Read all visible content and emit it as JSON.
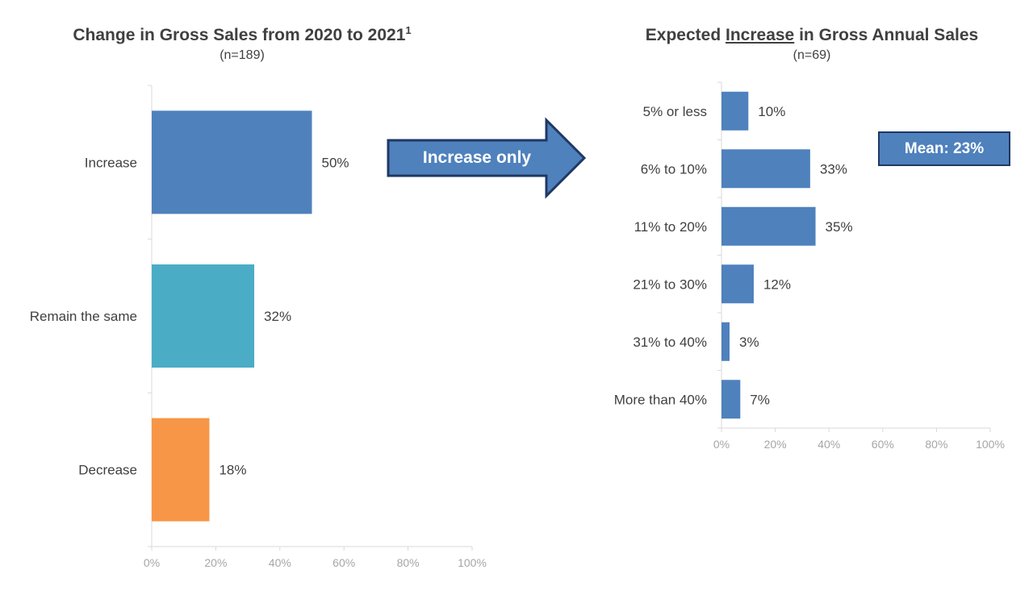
{
  "left_chart": {
    "title": "Change in Gross Sales from 2020 to 2021",
    "title_superscript": "1",
    "subtitle": "(n=189)"
  },
  "right_chart": {
    "title_prefix": "Expected ",
    "title_underlined": "Increase",
    "title_suffix": " in Gross Annual Sales",
    "subtitle": "(n=69)",
    "mean_label": "Mean: 23%"
  },
  "arrow": {
    "label": "Increase only",
    "fill": "#4f81bd",
    "stroke": "#1f3864"
  },
  "chart_data": [
    {
      "type": "bar",
      "orientation": "horizontal",
      "title": "Change in Gross Sales from 2020 to 2021",
      "subtitle": "(n=189)",
      "categories": [
        "Increase",
        "Remain the same",
        "Decrease"
      ],
      "values": [
        50,
        32,
        18
      ],
      "value_labels": [
        "50%",
        "32%",
        "18%"
      ],
      "colors": [
        "#4f81bd",
        "#4bacc6",
        "#f79646"
      ],
      "xlim": [
        0,
        100
      ],
      "x_ticks": [
        "0%",
        "20%",
        "40%",
        "60%",
        "80%",
        "100%"
      ]
    },
    {
      "type": "bar",
      "orientation": "horizontal",
      "title": "Expected Increase in Gross Annual Sales",
      "subtitle": "(n=69)",
      "categories": [
        "5% or less",
        "6% to 10%",
        "11% to 20%",
        "21% to 30%",
        "31% to 40%",
        "More than 40%"
      ],
      "values": [
        10,
        33,
        35,
        12,
        3,
        7
      ],
      "value_labels": [
        "10%",
        "33%",
        "35%",
        "12%",
        "3%",
        "7%"
      ],
      "colors": [
        "#4f81bd"
      ],
      "xlim": [
        0,
        100
      ],
      "x_ticks": [
        "0%",
        "20%",
        "40%",
        "60%",
        "80%",
        "100%"
      ],
      "annotation": "Mean: 23%"
    }
  ]
}
